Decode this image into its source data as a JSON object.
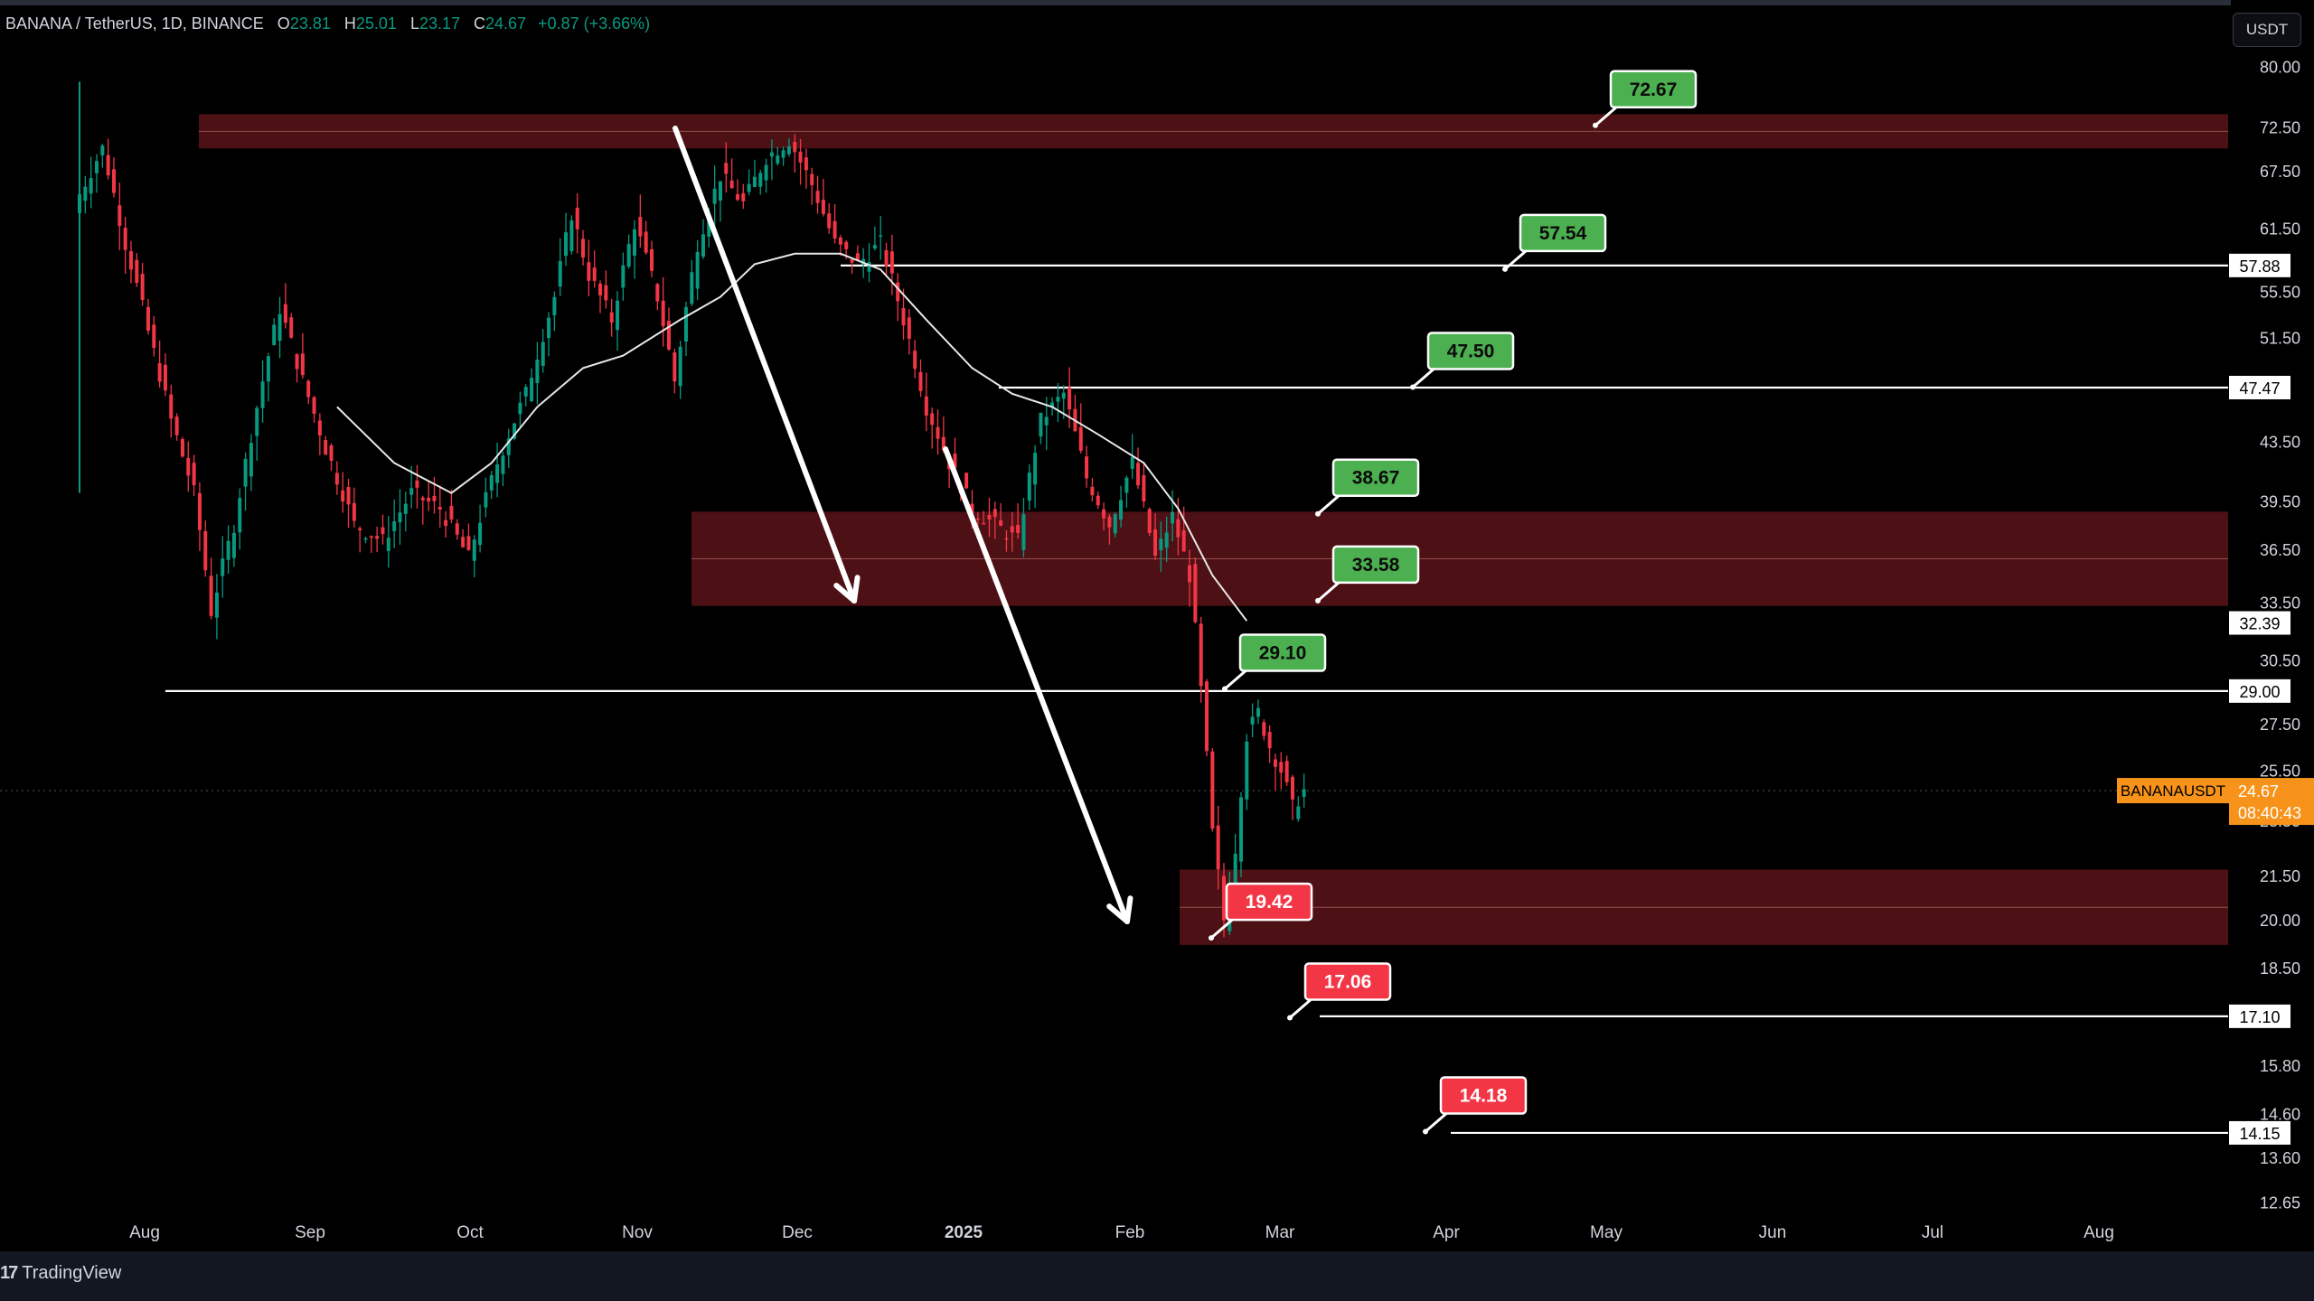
{
  "header": {
    "symbol": "BANANA / TetherUS, 1D, BINANCE",
    "ohlc": [
      {
        "key": "O",
        "value": "23.81"
      },
      {
        "key": "H",
        "value": "25.01"
      },
      {
        "key": "L",
        "value": "23.17"
      },
      {
        "key": "C",
        "value": "24.67"
      }
    ],
    "change": "+0.87 (+3.66%)"
  },
  "currency_button": "USDT",
  "branding": "TradingView",
  "colors": {
    "background": "#000000",
    "up": "#089981",
    "down": "#f23645",
    "zone_fill": "#5a1317",
    "target_label": "#4caf50",
    "support_label": "#f23645",
    "price_label": "#f7931a"
  },
  "chart_data": {
    "type": "candlestick",
    "scale": "log",
    "x_ticks": [
      "Aug",
      "Sep",
      "Oct",
      "Nov",
      "Dec",
      "2025",
      "Feb",
      "Mar",
      "Apr",
      "May",
      "Jun",
      "Jul",
      "Aug"
    ],
    "y_ticks": [
      "80.00",
      "72.50",
      "67.50",
      "61.50",
      "55.50",
      "51.50",
      "43.50",
      "39.50",
      "36.50",
      "33.50",
      "30.50",
      "27.50",
      "25.50",
      "23.50",
      "21.50",
      "20.00",
      "18.50",
      "15.80",
      "14.60",
      "13.60",
      "12.65"
    ],
    "y_range": [
      12.2,
      84.0
    ],
    "price_path": [
      [
        0,
        65.0
      ],
      [
        4,
        70.0
      ],
      [
        8,
        60.0
      ],
      [
        12,
        52.0
      ],
      [
        16,
        45.0
      ],
      [
        20,
        40.0
      ],
      [
        23,
        33.0
      ],
      [
        27,
        38.0
      ],
      [
        31,
        46.0
      ],
      [
        35,
        54.0
      ],
      [
        39,
        48.0
      ],
      [
        43,
        43.0
      ],
      [
        48,
        38.0
      ],
      [
        53,
        37.0
      ],
      [
        58,
        40.0
      ],
      [
        63,
        39.0
      ],
      [
        68,
        36.0
      ],
      [
        73,
        42.0
      ],
      [
        78,
        47.0
      ],
      [
        83,
        55.0
      ],
      [
        86,
        63.0
      ],
      [
        89,
        57.0
      ],
      [
        93,
        53.0
      ],
      [
        97,
        62.0
      ],
      [
        101,
        55.0
      ],
      [
        104,
        48.0
      ],
      [
        108,
        60.0
      ],
      [
        112,
        67.0
      ],
      [
        116,
        64.0
      ],
      [
        120,
        69.0
      ],
      [
        124,
        71.0
      ],
      [
        128,
        66.0
      ],
      [
        132,
        60.0
      ],
      [
        136,
        58.0
      ],
      [
        140,
        60.0
      ],
      [
        144,
        53.0
      ],
      [
        148,
        46.0
      ],
      [
        152,
        42.0
      ],
      [
        156,
        39.0
      ],
      [
        160,
        38.0
      ],
      [
        164,
        37.0
      ],
      [
        168,
        45.0
      ],
      [
        172,
        47.0
      ],
      [
        176,
        41.0
      ],
      [
        180,
        38.0
      ],
      [
        184,
        42.0
      ],
      [
        188,
        36.0
      ],
      [
        191,
        38.5
      ],
      [
        194,
        35.0
      ],
      [
        196,
        29.0
      ],
      [
        198,
        23.0
      ],
      [
        200,
        20.0
      ],
      [
        202,
        22.5
      ],
      [
        204,
        27.0
      ],
      [
        206,
        28.0
      ],
      [
        208,
        26.5
      ],
      [
        210,
        25.5
      ],
      [
        212,
        24.0
      ],
      [
        214,
        24.67
      ]
    ],
    "moving_average": [
      [
        45,
        46.0
      ],
      [
        55,
        42.0
      ],
      [
        65,
        40.0
      ],
      [
        72,
        42.0
      ],
      [
        80,
        46.0
      ],
      [
        88,
        49.0
      ],
      [
        95,
        50.0
      ],
      [
        105,
        53.0
      ],
      [
        112,
        55.0
      ],
      [
        118,
        58.0
      ],
      [
        125,
        59.0
      ],
      [
        133,
        59.0
      ],
      [
        140,
        57.5
      ],
      [
        148,
        53.0
      ],
      [
        156,
        49.0
      ],
      [
        163,
        47.0
      ],
      [
        170,
        46.0
      ],
      [
        178,
        44.0
      ],
      [
        186,
        42.0
      ],
      [
        192,
        39.0
      ],
      [
        198,
        35.0
      ],
      [
        204,
        32.5
      ]
    ],
    "zones": [
      {
        "low": 70.0,
        "high": 74.0
      },
      {
        "low": 33.3,
        "high": 38.8
      },
      {
        "low": 19.2,
        "high": 21.7
      }
    ],
    "levels": [
      {
        "price": 57.88,
        "axis_label": "57.88"
      },
      {
        "price": 47.47,
        "axis_label": "47.47"
      },
      {
        "price": 32.39,
        "axis_label": "32.39"
      },
      {
        "price": 29.0,
        "axis_label": "29.00"
      },
      {
        "price": 17.1,
        "axis_label": "17.10"
      },
      {
        "price": 14.15,
        "axis_label": "14.15"
      }
    ],
    "targets": [
      {
        "label": "72.67",
        "color": "green"
      },
      {
        "label": "57.54",
        "color": "green"
      },
      {
        "label": "47.50",
        "color": "green"
      },
      {
        "label": "38.67",
        "color": "green"
      },
      {
        "label": "33.58",
        "color": "green"
      },
      {
        "label": "29.10",
        "color": "green"
      },
      {
        "label": "19.42",
        "color": "red"
      },
      {
        "label": "17.06",
        "color": "red"
      },
      {
        "label": "14.18",
        "color": "red"
      }
    ],
    "current": {
      "symbol": "BANANAUSDT",
      "price": "24.67",
      "countdown": "08:40:43"
    }
  }
}
